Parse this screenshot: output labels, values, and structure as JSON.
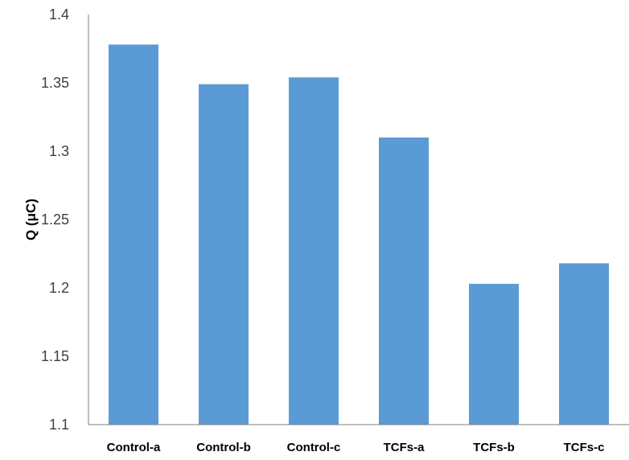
{
  "chart_data": {
    "type": "bar",
    "title": "",
    "xlabel": "",
    "ylabel": "Q (μC)",
    "categories": [
      "Control-a",
      "Control-b",
      "Control-c",
      "TCFs-a",
      "TCFs-b",
      "TCFs-c"
    ],
    "values": [
      1.378,
      1.349,
      1.354,
      1.31,
      1.203,
      1.218
    ],
    "ylim": [
      1.1,
      1.4
    ],
    "yticks": [
      "1.1",
      "1.15",
      "1.2",
      "1.25",
      "1.3",
      "1.35",
      "1.4"
    ],
    "grid": false,
    "legend": "none",
    "bar_color": "#5b9bd5",
    "axis_color": "#7f7f7f"
  }
}
